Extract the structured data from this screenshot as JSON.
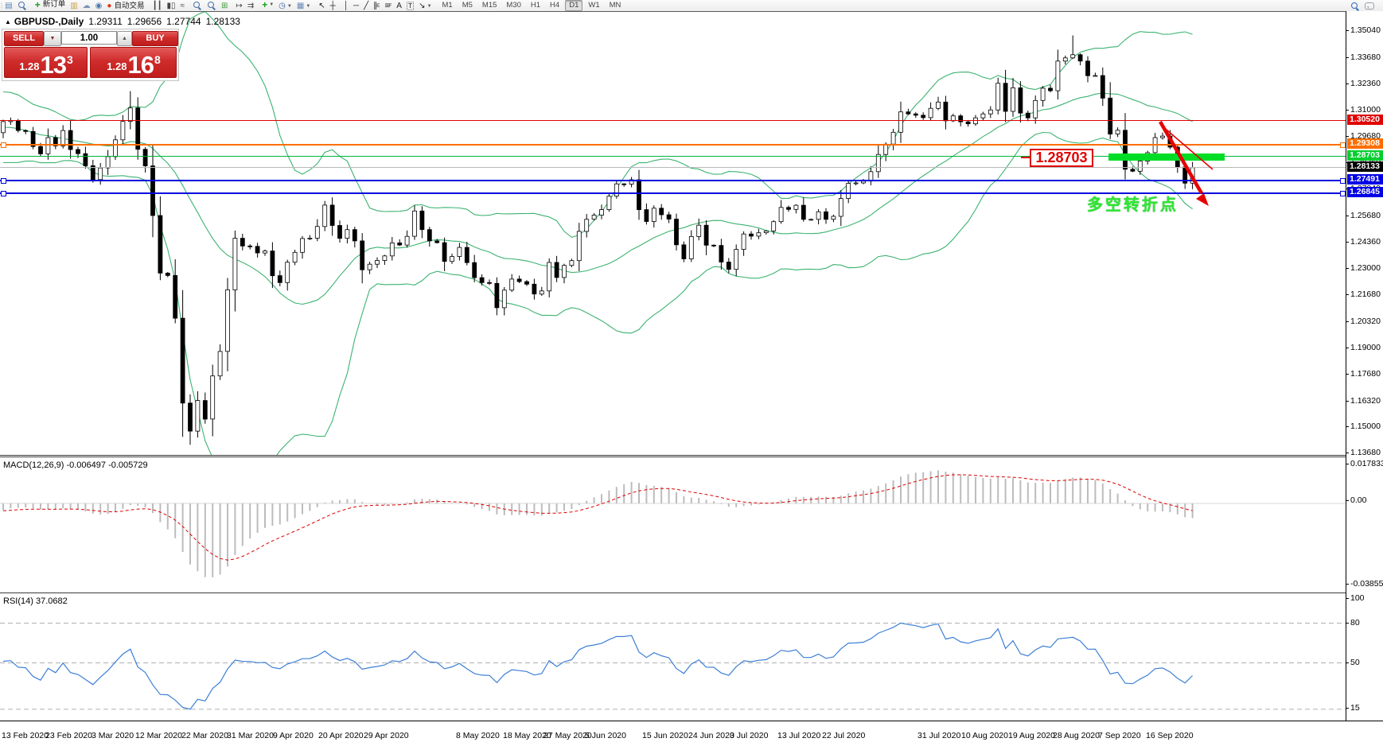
{
  "icons": {
    "collapse": "▲",
    "dropdown": "▼",
    "spinner_up": "▲"
  },
  "toolbar": {
    "labels": {
      "new_order": "新订单",
      "autotrading": "自动交易"
    },
    "items": [
      {
        "grip": true
      },
      {
        "name": "new-chart",
        "glyph": "▤",
        "color": "#5b84b8"
      },
      {
        "name": "profiles",
        "glyph": "mag"
      },
      {
        "sep": true
      },
      {
        "name": "new-order",
        "glyph": "+",
        "color": "#18a018",
        "bold": true,
        "label_key": "new_order"
      },
      {
        "name": "history-center",
        "glyph": "▥",
        "color": "#c8a24a"
      },
      {
        "name": "mql5-cloud",
        "glyph": "☁",
        "color": "#7a93b8"
      },
      {
        "name": "signals",
        "glyph": "◉",
        "color": "#4a7ab0"
      },
      {
        "name": "autotrading",
        "glyph": "●",
        "color": "#d93a20",
        "label_key": "autotrading"
      },
      {
        "sep": true
      },
      {
        "name": "bar-chart-mode",
        "glyph": "┃┃",
        "color": "#444444"
      },
      {
        "name": "candlestick-mode",
        "glyph": "▮▯",
        "color": "#444444"
      },
      {
        "name": "line-chart-mode",
        "glyph": "≈",
        "color": "#444444"
      },
      {
        "sep": true
      },
      {
        "name": "zoom-in",
        "glyph": "mag"
      },
      {
        "name": "zoom-out",
        "glyph": "mag"
      },
      {
        "name": "tile-windows",
        "glyph": "⊞",
        "color": "#3a9a3a"
      },
      {
        "sep": true
      },
      {
        "name": "chart-shift",
        "glyph": "↦",
        "color": "#444444"
      },
      {
        "name": "auto-scroll",
        "glyph": "⇉",
        "color": "#444444"
      },
      {
        "sep": true
      },
      {
        "name": "indicators",
        "glyph": "+",
        "color": "#18a018",
        "bold": true,
        "dropdown": true
      },
      {
        "name": "periods",
        "glyph": "◷",
        "color": "#3a6ab0",
        "dropdown": true
      },
      {
        "name": "templates",
        "glyph": "▦",
        "color": "#6a8ab8",
        "dropdown": true
      },
      {
        "sep": true
      },
      {
        "name": "cursor",
        "glyph": "↖",
        "color": "#222222"
      },
      {
        "name": "crosshair",
        "glyph": "┼",
        "color": "#222222"
      },
      {
        "sep": true
      },
      {
        "name": "vertical-line",
        "glyph": "│",
        "color": "#222222"
      },
      {
        "name": "horizontal-line",
        "glyph": "─",
        "color": "#222222"
      },
      {
        "name": "trendline",
        "glyph": "╱",
        "color": "#222222"
      },
      {
        "name": "equidistant-channel",
        "glyph": "∥",
        "sub": "E",
        "color": "#222222"
      },
      {
        "name": "fibonacci",
        "glyph": "≡",
        "sub": "F",
        "color": "#222222"
      },
      {
        "name": "text",
        "glyph": "A",
        "color": "#222222"
      },
      {
        "name": "text-label",
        "glyph": "T",
        "color": "#222222",
        "boxed": true
      },
      {
        "name": "arrows",
        "glyph": "↘",
        "color": "#222222",
        "dropdown": true
      },
      {
        "sep": true
      }
    ],
    "timeframes": [
      "M1",
      "M5",
      "M15",
      "M30",
      "H1",
      "H4",
      "D1",
      "W1",
      "MN"
    ],
    "active_timeframe": "D1"
  },
  "chart_header": {
    "symbol": "GBPUSD-,Daily",
    "open": "1.29311",
    "high": "1.29656",
    "low": "1.27744",
    "close": "1.28133"
  },
  "trade_panel": {
    "sell_label": "SELL",
    "buy_label": "BUY",
    "volume": "1.00",
    "sell_price": {
      "base": "1.28",
      "big": "13",
      "sup": "3"
    },
    "buy_price": {
      "base": "1.28",
      "big": "16",
      "sup": "8"
    }
  },
  "price_axis": {
    "ticks": [
      "1.35040",
      "1.33680",
      "1.32360",
      "1.31000",
      "1.29680",
      "1.28360",
      "1.27040",
      "1.25680",
      "1.24360",
      "1.23000",
      "1.21680",
      "1.20320",
      "1.19000",
      "1.17680",
      "1.16320",
      "1.15000",
      "1.13680"
    ]
  },
  "price_lines": [
    {
      "value": "1.30520",
      "price": 1.3052,
      "color": "#e00000",
      "badge": "#e00000",
      "selected": false,
      "width": 1
    },
    {
      "value": "1.29308",
      "price": 1.29308,
      "color": "#ff6e00",
      "badge": "#ff6e00",
      "selected": true,
      "width": 2
    },
    {
      "value": "1.28703",
      "price": 1.28703,
      "color": "#00b43c",
      "badge": "#00ce2e",
      "selected": false,
      "width": 1
    },
    {
      "value": "1.28133",
      "price": 1.28133,
      "color": "#b8b8b8",
      "badge": "#000000",
      "selected": false,
      "width": 1
    },
    {
      "value": "1.27491",
      "price": 1.27491,
      "color": "#0000dc",
      "badge": "#0000e6",
      "selected": true,
      "width": 2
    },
    {
      "value": "1.26845",
      "price": 1.26845,
      "color": "#0000dc",
      "badge": "#0000e6",
      "selected": true,
      "width": 2
    }
  ],
  "annotations": {
    "price_label": "1.28703",
    "turning_point_text": "多空转折点",
    "highlight_color": "#00dd26",
    "arrow_color": "#e60000",
    "label_border_color": "#e00000"
  },
  "macd_panel": {
    "label": "MACD(12,26,9) -0.006497 -0.005729",
    "axis": [
      "0.017833",
      "0.00",
      "-0.038559"
    ]
  },
  "rsi_panel": {
    "label": "RSI(14) 37.0682",
    "axis": [
      "100",
      "80",
      "50",
      "15"
    ],
    "levels": [
      80,
      50,
      15
    ]
  },
  "date_axis": {
    "labels": [
      "13 Feb 2020",
      "23 Feb 2020",
      "3 Mar 2020",
      "12 Mar 2020",
      "22 Mar 2020",
      "31 Mar 2020",
      "9 Apr 2020",
      "20 Apr 2020",
      "29 Apr 2020",
      "8 May 2020",
      "18 May 2020",
      "27 May 2020",
      "5 Jun 2020",
      "15 Jun 2020",
      "24 Jun 2020",
      "3 Jul 2020",
      "13 Jul 2020",
      "22 Jul 2020",
      "31 Jul 2020",
      "10 Aug 2020",
      "19 Aug 2020",
      "28 Aug 2020",
      "7 Sep 2020",
      "16 Sep 2020"
    ]
  },
  "chart_data": {
    "type": "candlestick",
    "symbol": "GBPUSD",
    "timeframe": "Daily",
    "visible_range": {
      "first_date": "13 Feb 2020",
      "last_date": "23 Sep 2020",
      "price_min": 1.1368,
      "price_max": 1.3504
    },
    "pre_closes": [
      1.308,
      1.312,
      1.3165,
      1.315,
      1.31,
      1.306,
      1.3085,
      1.3105,
      1.307,
      1.301,
      1.296,
      1.2905,
      1.2925,
      1.295,
      1.291,
      1.287,
      1.2895,
      1.2955,
      1.299
    ],
    "closes": [
      1.3046,
      1.3051,
      1.3001,
      1.2996,
      1.292,
      1.2883,
      1.2965,
      1.2923,
      1.3001,
      1.2905,
      1.2884,
      1.2823,
      1.2753,
      1.2812,
      1.2869,
      1.2954,
      1.3047,
      1.3115,
      1.2906,
      1.2822,
      1.2571,
      1.228,
      1.2268,
      1.2052,
      1.1623,
      1.1481,
      1.1636,
      1.1542,
      1.176,
      1.1884,
      1.2195,
      1.2456,
      1.2417,
      1.2415,
      1.2382,
      1.2392,
      1.2267,
      1.2232,
      1.2335,
      1.2385,
      1.2455,
      1.2457,
      1.2516,
      1.2624,
      1.2521,
      1.2456,
      1.25,
      1.2443,
      1.2297,
      1.2325,
      1.2344,
      1.2367,
      1.2433,
      1.2422,
      1.2466,
      1.2594,
      1.25,
      1.2443,
      1.2434,
      1.2339,
      1.2364,
      1.241,
      1.2333,
      1.2257,
      1.2232,
      1.2228,
      1.2105,
      1.2194,
      1.225,
      1.2237,
      1.2224,
      1.2174,
      1.219,
      1.2334,
      1.2258,
      1.2319,
      1.2343,
      1.2491,
      1.2552,
      1.2573,
      1.2601,
      1.2669,
      1.2731,
      1.273,
      1.2752,
      1.2601,
      1.2541,
      1.2608,
      1.2575,
      1.2553,
      1.2423,
      1.2352,
      1.2465,
      1.2522,
      1.2421,
      1.242,
      1.2336,
      1.2299,
      1.24,
      1.2478,
      1.2467,
      1.2484,
      1.2493,
      1.254,
      1.2612,
      1.2602,
      1.2623,
      1.2552,
      1.2552,
      1.259,
      1.2552,
      1.2567,
      1.2657,
      1.2734,
      1.2736,
      1.2745,
      1.2793,
      1.288,
      1.2932,
      1.2992,
      1.3095,
      1.3085,
      1.3078,
      1.3066,
      1.3113,
      1.3145,
      1.305,
      1.3075,
      1.3045,
      1.3035,
      1.3065,
      1.3085,
      1.3105,
      1.324,
      1.3098,
      1.3217,
      1.3089,
      1.3065,
      1.3153,
      1.3215,
      1.3202,
      1.3352,
      1.3368,
      1.3384,
      1.3352,
      1.3278,
      1.3279,
      1.3165,
      1.2983,
      1.3002,
      1.2805,
      1.2795,
      1.2846,
      1.2889,
      1.2965,
      1.2973,
      1.2917,
      1.2817,
      1.2735,
      1.28133
    ],
    "wick_overrides": {
      "17": {
        "high": 1.32
      },
      "24": {
        "low": 1.1452
      },
      "25": {
        "low": 1.1412
      },
      "143": {
        "high": 1.3482
      }
    },
    "indicators": {
      "bollinger": {
        "period": 20,
        "deviation": 2,
        "color": "#3cb371"
      },
      "macd": {
        "fast": 12,
        "slow": 26,
        "signal": 9,
        "histogram_color": "#bcbcbc",
        "signal_color": "#dd0000"
      },
      "rsi": {
        "period": 14,
        "color": "#3d7fd6"
      }
    }
  }
}
